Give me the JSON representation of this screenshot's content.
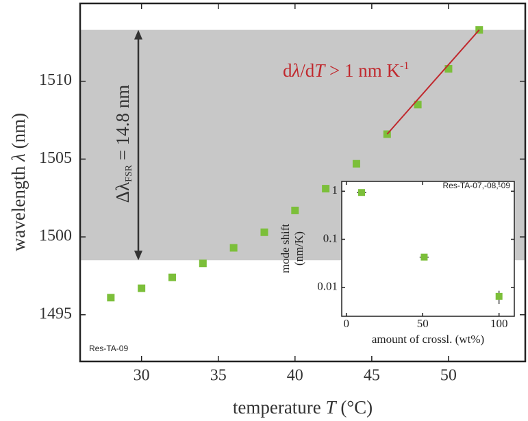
{
  "chart_data": [
    {
      "type": "scatter",
      "x": [
        28,
        30,
        32,
        34,
        36,
        38,
        40,
        42,
        44,
        46,
        48,
        50,
        52
      ],
      "values": [
        1496.1,
        1496.7,
        1497.4,
        1498.3,
        1499.3,
        1500.3,
        1501.7,
        1503.1,
        1504.7,
        1506.6,
        1508.5,
        1510.8,
        1513.3
      ],
      "color": "#7cbf3a",
      "xlim": [
        26,
        55
      ],
      "ylim": [
        1492,
        1515
      ],
      "xticks": [
        30,
        35,
        40,
        45,
        50
      ],
      "yticks": [
        1495,
        1500,
        1505,
        1510
      ],
      "x_label_parts": [
        "temperature ",
        "T",
        " (°C)"
      ],
      "y_label_parts": [
        "wavelength ",
        "λ",
        " (nm)"
      ],
      "corner_label": "Res-TA-09",
      "band": [
        1498.5,
        1513.3
      ],
      "band_color": "#c8c8c8",
      "band_label_parts": [
        "Δλ",
        "FSR",
        " = 14.8 nm"
      ],
      "fit_line": {
        "x": [
          46,
          52
        ],
        "y": [
          1506.6,
          1513.3
        ],
        "color": "#c0282d"
      },
      "fit_label_parts": [
        "d",
        "λ",
        "/d",
        "T",
        " > 1 nm K",
        "-1"
      ]
    },
    {
      "type": "scatter",
      "log_y": true,
      "title": "Res-TA-07,-08,-09",
      "x": [
        10,
        51,
        100
      ],
      "values": [
        0.94,
        0.0425,
        0.0065
      ],
      "x_err": [
        3,
        3,
        0
      ],
      "y_err": [
        0,
        0,
        0.002
      ],
      "color": "#7cbf3a",
      "xlim": [
        -3,
        110
      ],
      "ylim": [
        0.0025,
        1.6
      ],
      "xticks": [
        0,
        50,
        100
      ],
      "yticks": [
        1,
        0.1,
        0.01
      ],
      "x_label": "amount of crossl. (wt%)",
      "y_label_lines": [
        "mode shift",
        "(nm/K)"
      ]
    }
  ]
}
